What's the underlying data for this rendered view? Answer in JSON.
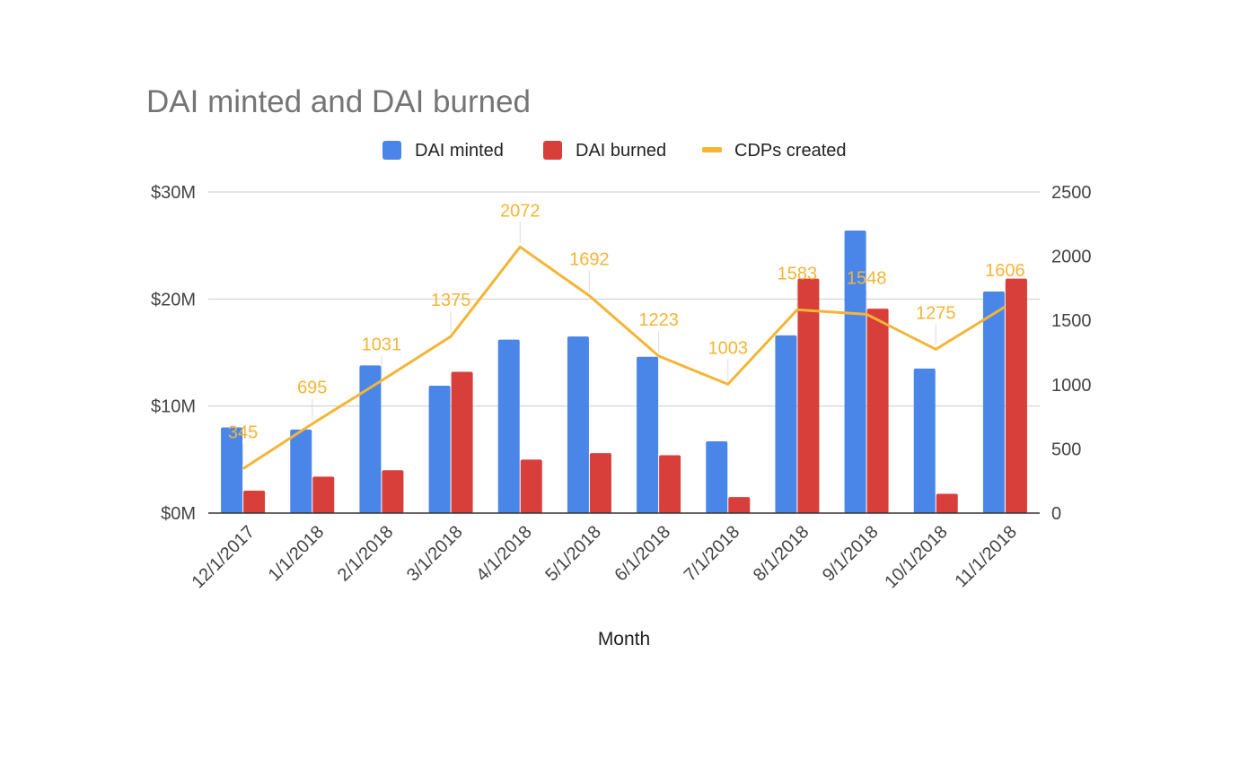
{
  "chart_data": {
    "type": "bar",
    "title": "DAI minted and DAI burned",
    "xlabel": "Month",
    "ylabel": "",
    "ylabel_right": "",
    "categories": [
      "12/1/2017",
      "1/1/2018",
      "2/1/2018",
      "3/1/2018",
      "4/1/2018",
      "5/1/2018",
      "6/1/2018",
      "7/1/2018",
      "8/1/2018",
      "9/1/2018",
      "10/1/2018",
      "11/1/2018"
    ],
    "series": [
      {
        "name": "DAI minted",
        "type": "bar",
        "axis": "left",
        "color": "#4a86e8",
        "values": [
          8.0,
          7.8,
          13.8,
          11.9,
          16.2,
          16.5,
          14.6,
          6.7,
          16.6,
          26.4,
          13.5,
          20.7
        ]
      },
      {
        "name": "DAI burned",
        "type": "bar",
        "axis": "left",
        "color": "#d93f3a",
        "values": [
          2.1,
          3.4,
          4.0,
          13.2,
          5.0,
          5.6,
          5.4,
          1.5,
          21.9,
          19.1,
          1.8,
          21.9
        ]
      },
      {
        "name": "CDPs created",
        "type": "line",
        "axis": "right",
        "color": "#f4b536",
        "values": [
          345,
          695,
          1031,
          1375,
          2072,
          1692,
          1223,
          1003,
          1583,
          1548,
          1275,
          1606
        ],
        "labels": [
          "345",
          "695",
          "1031",
          "1375",
          "2072",
          "1692",
          "1223",
          "1003",
          "1583",
          "1548",
          "1275",
          "1606"
        ]
      }
    ],
    "left_axis": {
      "ylim": [
        0,
        30
      ],
      "ticks": [
        0,
        10,
        20,
        30
      ],
      "tick_labels": [
        "$0M",
        "$10M",
        "$20M",
        "$30M"
      ]
    },
    "right_axis": {
      "ylim": [
        0,
        2500
      ],
      "ticks": [
        0,
        500,
        1000,
        1500,
        2000,
        2500
      ],
      "tick_labels": [
        "0",
        "500",
        "1000",
        "1500",
        "2000",
        "2500"
      ]
    },
    "legend_position": "top-center",
    "grid": true
  }
}
